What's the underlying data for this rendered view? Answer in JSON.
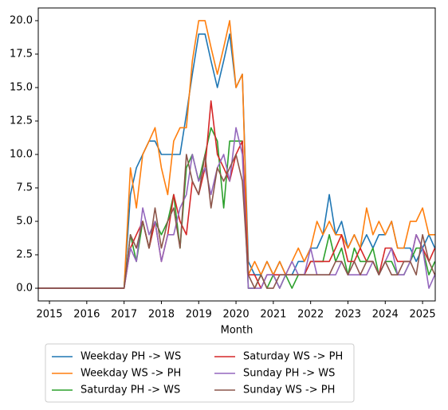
{
  "chart_data": {
    "type": "line",
    "x_label": "Month",
    "x": [
      2014.7,
      2017.0,
      2017.17,
      2017.33,
      2017.5,
      2017.67,
      2017.83,
      2018.0,
      2018.17,
      2018.33,
      2018.5,
      2018.67,
      2018.83,
      2019.0,
      2019.17,
      2019.33,
      2019.5,
      2019.67,
      2019.83,
      2020.0,
      2020.17,
      2020.33,
      2020.5,
      2020.67,
      2020.83,
      2021.0,
      2021.17,
      2021.33,
      2021.5,
      2021.67,
      2021.83,
      2022.0,
      2022.17,
      2022.33,
      2022.5,
      2022.67,
      2022.83,
      2023.0,
      2023.17,
      2023.33,
      2023.5,
      2023.67,
      2023.83,
      2024.0,
      2024.17,
      2024.33,
      2024.5,
      2024.67,
      2024.83,
      2025.0,
      2025.17,
      2025.33
    ],
    "series": [
      {
        "name": "Weekday PH -> WS",
        "color": "#1f77b4",
        "values": [
          0,
          0,
          7,
          9,
          10,
          11,
          11,
          10,
          10,
          10,
          10,
          13,
          16,
          19,
          19,
          17,
          15,
          17,
          19,
          15,
          16,
          2,
          1,
          1,
          2,
          1,
          2,
          1,
          1,
          2,
          2,
          3,
          3,
          4,
          7,
          4,
          5,
          3,
          4,
          3,
          4,
          3,
          4,
          4,
          5,
          3,
          3,
          3,
          2,
          3,
          4,
          3
        ]
      },
      {
        "name": "Weekday WS -> PH",
        "color": "#ff7f0e",
        "values": [
          0,
          0,
          9,
          6,
          10,
          11,
          12,
          9,
          7,
          11,
          12,
          12,
          17,
          20,
          20,
          18,
          16,
          18,
          20,
          15,
          16,
          1,
          2,
          1,
          2,
          1,
          2,
          1,
          2,
          3,
          2,
          3,
          5,
          4,
          5,
          4,
          4,
          3,
          4,
          3,
          6,
          4,
          5,
          4,
          5,
          3,
          3,
          5,
          5,
          6,
          4,
          4
        ]
      },
      {
        "name": "Saturday PH -> WS",
        "color": "#2ca02c",
        "values": [
          0,
          0,
          4,
          2,
          5,
          3,
          5,
          4,
          5,
          7,
          3,
          9,
          10,
          8,
          10,
          12,
          11,
          6,
          11,
          11,
          11,
          0,
          0,
          1,
          0,
          1,
          0,
          1,
          0,
          1,
          1,
          2,
          2,
          2,
          4,
          2,
          3,
          1,
          3,
          2,
          2,
          3,
          1,
          2,
          2,
          1,
          1,
          2,
          3,
          3,
          1,
          2
        ]
      },
      {
        "name": "Saturday WS -> PH",
        "color": "#d62728",
        "values": [
          0,
          0,
          3,
          4,
          5,
          3,
          5,
          2,
          4,
          7,
          5,
          4,
          8,
          7,
          9,
          14,
          10,
          9,
          8,
          10,
          11,
          1,
          1,
          0,
          1,
          1,
          1,
          1,
          1,
          1,
          1,
          2,
          2,
          2,
          2,
          3,
          4,
          2,
          2,
          3,
          2,
          2,
          1,
          3,
          3,
          2,
          2,
          2,
          4,
          3,
          2,
          3
        ]
      },
      {
        "name": "Sunday PH -> WS",
        "color": "#9467bd",
        "values": [
          0,
          0,
          3,
          2,
          6,
          4,
          5,
          2,
          4,
          4,
          6,
          7,
          10,
          8,
          9,
          7,
          9,
          10,
          8,
          12,
          10,
          0,
          0,
          0,
          1,
          1,
          0,
          1,
          2,
          1,
          1,
          3,
          1,
          1,
          1,
          1,
          2,
          1,
          1,
          1,
          1,
          2,
          1,
          2,
          3,
          1,
          1,
          2,
          4,
          3,
          0,
          1
        ]
      },
      {
        "name": "Sunday WS -> PH",
        "color": "#8c564b",
        "values": [
          0,
          0,
          4,
          3,
          5,
          3,
          6,
          3,
          5,
          6,
          3,
          10,
          8,
          7,
          10,
          6,
          9,
          8,
          9,
          10,
          8,
          1,
          0,
          1,
          0,
          0,
          1,
          1,
          1,
          1,
          1,
          1,
          1,
          1,
          1,
          2,
          2,
          1,
          2,
          1,
          2,
          2,
          1,
          2,
          1,
          1,
          2,
          2,
          1,
          4,
          2,
          1
        ]
      }
    ],
    "xlim": [
      2014.7,
      2025.34
    ],
    "xticks": [
      2015,
      2016,
      2017,
      2018,
      2019,
      2020,
      2021,
      2022,
      2023,
      2024,
      2025
    ],
    "ylim": [
      -0.95,
      20.95
    ],
    "yticks": [
      {
        "value": 0,
        "label": "0.0"
      },
      {
        "value": 2.5,
        "label": "2.5"
      },
      {
        "value": 5,
        "label": "5.0"
      },
      {
        "value": 7.5,
        "label": "7.5"
      },
      {
        "value": 10,
        "label": "10.0"
      },
      {
        "value": 12.5,
        "label": "12.5"
      },
      {
        "value": 15,
        "label": "15.0"
      },
      {
        "value": 17.5,
        "label": "17.5"
      },
      {
        "value": 20,
        "label": "20.0"
      }
    ],
    "legend": "below",
    "grid": false
  }
}
